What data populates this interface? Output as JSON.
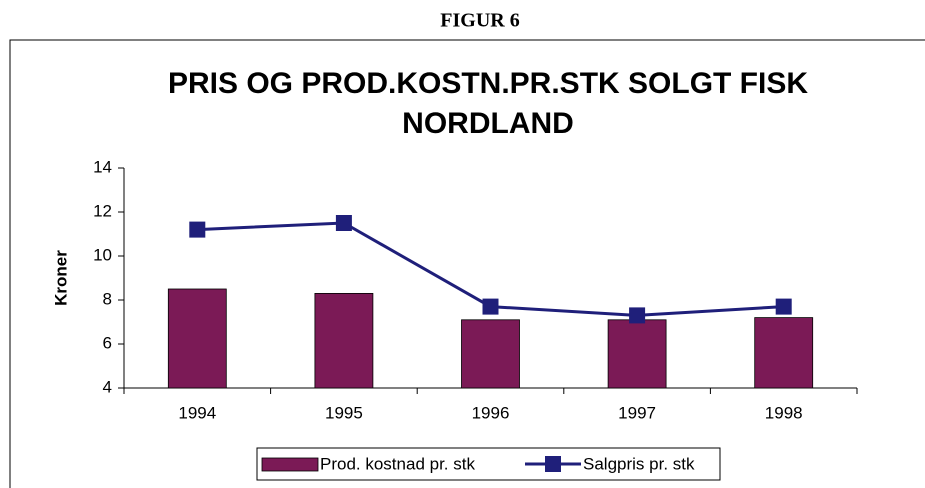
{
  "header": "FIGUR 6",
  "chart_data": {
    "type": "bar",
    "title": [
      "PRIS OG PROD.KOSTN.PR.STK SOLGT FISK",
      "NORDLAND"
    ],
    "y_label": "Kroner",
    "categories": [
      "1994",
      "1995",
      "1996",
      "1997",
      "1998"
    ],
    "series": [
      {
        "name": "Prod. kostnad pr. stk",
        "type": "bar",
        "color": "#7b1a56",
        "values": [
          8.5,
          8.3,
          7.1,
          7.1,
          7.2
        ]
      },
      {
        "name": "Salgpris pr. stk",
        "type": "line",
        "color": "#1f1f7a",
        "values": [
          11.2,
          11.5,
          7.7,
          7.3,
          7.7
        ]
      }
    ],
    "ylim": [
      4,
      14
    ],
    "yticks": [
      4,
      6,
      8,
      10,
      12,
      14
    ],
    "grid": false,
    "legend": "bottom"
  }
}
